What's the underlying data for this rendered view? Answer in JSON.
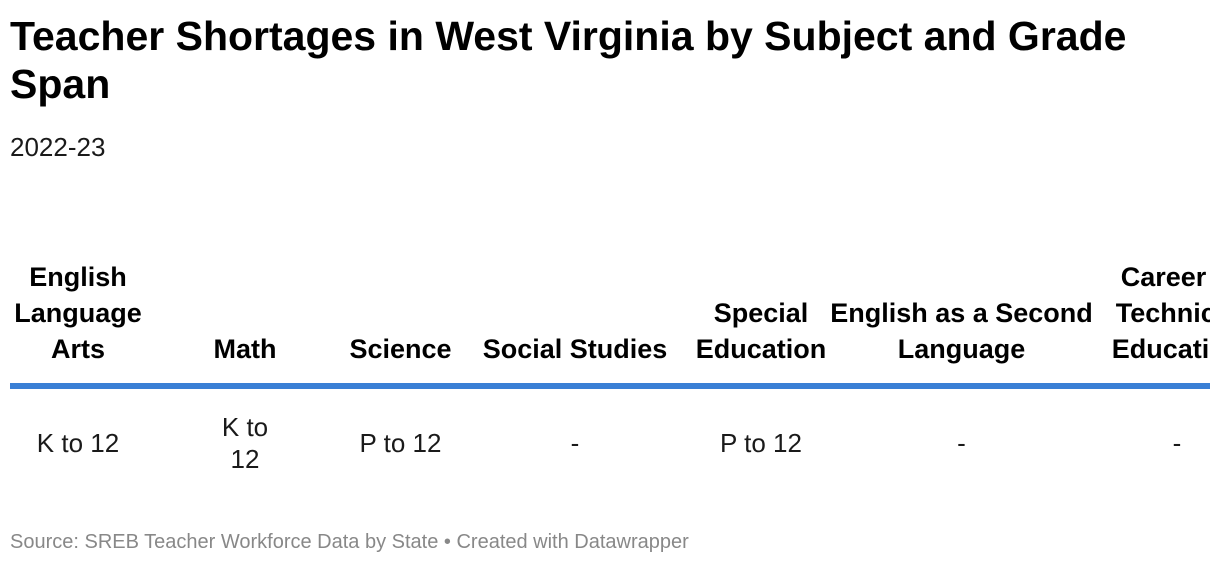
{
  "chart_data": {
    "type": "table",
    "title": "Teacher Shortages in West Virginia by Subject and Grade Span",
    "subtitle": "2022-23",
    "columns": [
      "English Language Arts",
      "Math",
      "Science",
      "Social Studies",
      "Special Education",
      "English as a Second Language",
      "Career & Technical Education"
    ],
    "rows": [
      [
        "K to 12",
        "K to 12",
        "P to 12",
        "-",
        "P to 12",
        "-",
        "-"
      ]
    ],
    "source": "Source: SREB Teacher Workforce Data by State • Created with Datawrapper",
    "colors": {
      "header_rule": "#3a7fd5",
      "source_text": "#888888"
    }
  }
}
